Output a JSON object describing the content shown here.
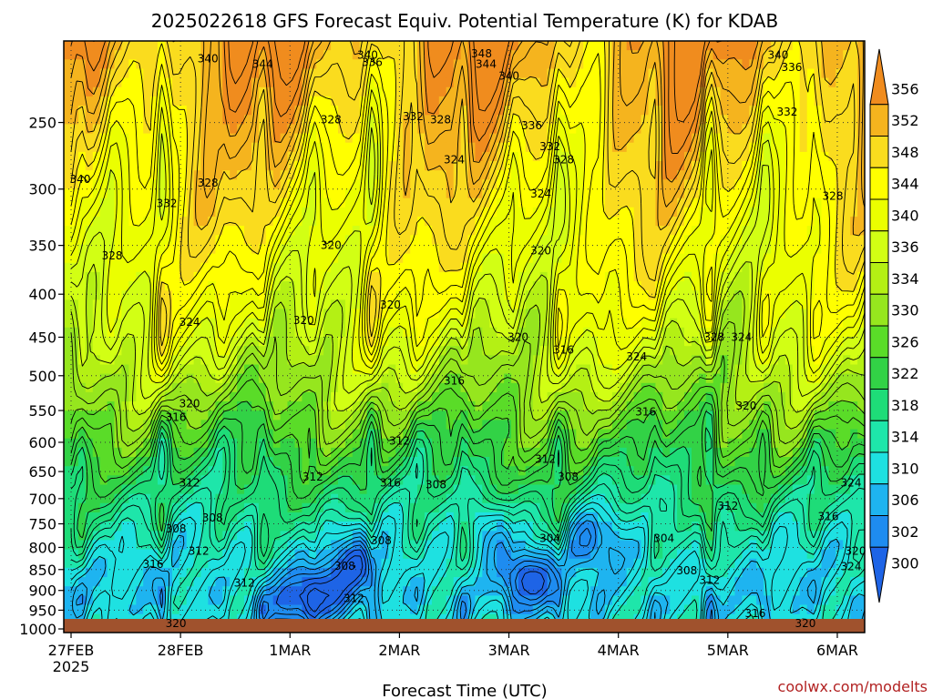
{
  "chart_data": {
    "type": "heatmap",
    "title": "2025022618 GFS Forecast Equiv. Potential Temperature (K) for KDAB",
    "xlabel": "Forecast Time (UTC)",
    "ylabel": "",
    "credit": "coolwx.com/modelts",
    "x_ticks": [
      {
        "label": "27FEB",
        "sub": "2025",
        "hour": 0
      },
      {
        "label": "28FEB",
        "sub": "",
        "hour": 24
      },
      {
        "label": "1MAR",
        "sub": "",
        "hour": 48
      },
      {
        "label": "2MAR",
        "sub": "",
        "hour": 72
      },
      {
        "label": "3MAR",
        "sub": "",
        "hour": 96
      },
      {
        "label": "4MAR",
        "sub": "",
        "hour": 120
      },
      {
        "label": "5MAR",
        "sub": "",
        "hour": 144
      },
      {
        "label": "6MAR",
        "sub": "",
        "hour": 168
      }
    ],
    "x_range_hours": [
      0,
      174
    ],
    "y_ticks": [
      "250",
      "300",
      "350",
      "400",
      "450",
      "500",
      "550",
      "600",
      "650",
      "700",
      "750",
      "800",
      "850",
      "900",
      "950",
      "1000"
    ],
    "y_range_hpa": [
      200,
      1010
    ],
    "log_pressure_axis": true,
    "grid": true,
    "colorbar": {
      "labels": [
        356,
        352,
        348,
        344,
        340,
        336,
        334,
        330,
        326,
        322,
        318,
        314,
        310,
        306,
        302,
        300
      ],
      "colors": [
        "#f08c1e",
        "#f5b41e",
        "#fadc1e",
        "#ffff00",
        "#ebff00",
        "#d2ff14",
        "#b4f014",
        "#96e61e",
        "#5adc28",
        "#32d246",
        "#1edc78",
        "#1ee6aa",
        "#1ee1e1",
        "#1eb4f0",
        "#1e8cf0",
        "#1e64e6"
      ]
    },
    "contour_labels": [
      {
        "v": "340",
        "h": 30,
        "p": 210
      },
      {
        "v": "344",
        "h": 42,
        "p": 213
      },
      {
        "v": "340",
        "h": 65,
        "p": 208
      },
      {
        "v": "336",
        "h": 66,
        "p": 212
      },
      {
        "v": "348",
        "h": 90,
        "p": 207
      },
      {
        "v": "344",
        "h": 91,
        "p": 213
      },
      {
        "v": "340",
        "h": 96,
        "p": 220
      },
      {
        "v": "340",
        "h": 155,
        "p": 208
      },
      {
        "v": "336",
        "h": 158,
        "p": 215
      },
      {
        "v": "328",
        "h": 57,
        "p": 248
      },
      {
        "v": "332",
        "h": 75,
        "p": 246
      },
      {
        "v": "328",
        "h": 81,
        "p": 248
      },
      {
        "v": "336",
        "h": 101,
        "p": 252
      },
      {
        "v": "332",
        "h": 105,
        "p": 267
      },
      {
        "v": "328",
        "h": 108,
        "p": 277
      },
      {
        "v": "332",
        "h": 157,
        "p": 243
      },
      {
        "v": "324",
        "h": 84,
        "p": 277
      },
      {
        "v": "340",
        "h": 2,
        "p": 292
      },
      {
        "v": "332",
        "h": 21,
        "p": 312
      },
      {
        "v": "328",
        "h": 30,
        "p": 295
      },
      {
        "v": "324",
        "h": 103,
        "p": 304
      },
      {
        "v": "328",
        "h": 167,
        "p": 306
      },
      {
        "v": "320",
        "h": 103,
        "p": 355
      },
      {
        "v": "328",
        "h": 9,
        "p": 360
      },
      {
        "v": "320",
        "h": 57,
        "p": 350
      },
      {
        "v": "320",
        "h": 51,
        "p": 430
      },
      {
        "v": "320",
        "h": 70,
        "p": 412
      },
      {
        "v": "324",
        "h": 26,
        "p": 432
      },
      {
        "v": "328",
        "h": 141,
        "p": 450
      },
      {
        "v": "324",
        "h": 147,
        "p": 450
      },
      {
        "v": "320",
        "h": 98,
        "p": 450
      },
      {
        "v": "316",
        "h": 108,
        "p": 466
      },
      {
        "v": "324",
        "h": 124,
        "p": 475
      },
      {
        "v": "316",
        "h": 84,
        "p": 507
      },
      {
        "v": "320",
        "h": 26,
        "p": 540
      },
      {
        "v": "316",
        "h": 23,
        "p": 560
      },
      {
        "v": "316",
        "h": 126,
        "p": 552
      },
      {
        "v": "320",
        "h": 148,
        "p": 543
      },
      {
        "v": "312",
        "h": 72,
        "p": 598
      },
      {
        "v": "312",
        "h": 104,
        "p": 628
      },
      {
        "v": "308",
        "h": 109,
        "p": 660
      },
      {
        "v": "312",
        "h": 26,
        "p": 670
      },
      {
        "v": "312",
        "h": 53,
        "p": 660
      },
      {
        "v": "316",
        "h": 70,
        "p": 670
      },
      {
        "v": "308",
        "h": 80,
        "p": 674
      },
      {
        "v": "324",
        "h": 171,
        "p": 670
      },
      {
        "v": "312",
        "h": 144,
        "p": 714
      },
      {
        "v": "308",
        "h": 23,
        "p": 760
      },
      {
        "v": "308",
        "h": 31,
        "p": 738
      },
      {
        "v": "316",
        "h": 166,
        "p": 735
      },
      {
        "v": "308",
        "h": 68,
        "p": 785
      },
      {
        "v": "304",
        "h": 105,
        "p": 780
      },
      {
        "v": "304",
        "h": 130,
        "p": 780
      },
      {
        "v": "312",
        "h": 28,
        "p": 808
      },
      {
        "v": "320",
        "h": 172,
        "p": 808
      },
      {
        "v": "316",
        "h": 18,
        "p": 838
      },
      {
        "v": "308",
        "h": 60,
        "p": 842
      },
      {
        "v": "308",
        "h": 135,
        "p": 853
      },
      {
        "v": "324",
        "h": 171,
        "p": 843
      },
      {
        "v": "312",
        "h": 38,
        "p": 882
      },
      {
        "v": "312",
        "h": 140,
        "p": 875
      },
      {
        "v": "312",
        "h": 62,
        "p": 920
      },
      {
        "v": "316",
        "h": 150,
        "p": 958
      },
      {
        "v": "320",
        "h": 23,
        "p": 985
      },
      {
        "v": "320",
        "h": 161,
        "p": 985
      }
    ],
    "vertical_bands": [
      {
        "h": 2,
        "pw": 0.35
      },
      {
        "h": 9,
        "pw": 0.18
      },
      {
        "h": 20,
        "pw": 0.6
      },
      {
        "h": 33,
        "pw": 0.25
      },
      {
        "h": 42,
        "pw": 0.45
      },
      {
        "h": 53,
        "pw": 0.3
      },
      {
        "h": 66,
        "pw": 0.55
      },
      {
        "h": 76,
        "pw": 0.3
      },
      {
        "h": 86,
        "pw": 0.4
      },
      {
        "h": 97,
        "pw": 0.25
      },
      {
        "h": 107,
        "pw": 0.5
      },
      {
        "h": 116,
        "pw": 0.2
      },
      {
        "h": 128,
        "pw": 0.35
      },
      {
        "h": 140,
        "pw": 0.65
      },
      {
        "h": 152,
        "pw": 0.4
      },
      {
        "h": 163,
        "pw": 0.3
      },
      {
        "h": 172,
        "pw": 0.2
      }
    ],
    "blue_pockets": [
      {
        "h": 55,
        "p": 905,
        "strength": 12
      },
      {
        "h": 62,
        "p": 830,
        "strength": 10
      },
      {
        "h": 100,
        "p": 870,
        "strength": 14
      },
      {
        "h": 92,
        "p": 760,
        "strength": 8
      },
      {
        "h": 115,
        "p": 780,
        "strength": 9
      },
      {
        "h": 48,
        "p": 940,
        "strength": 10
      }
    ]
  }
}
